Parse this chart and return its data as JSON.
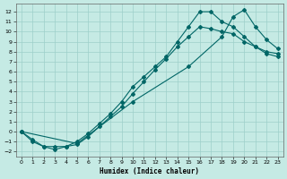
{
  "xlabel": "Humidex (Indice chaleur)",
  "xlim": [
    -0.5,
    23.5
  ],
  "ylim": [
    -2.5,
    12.8
  ],
  "xticks": [
    0,
    1,
    2,
    3,
    4,
    5,
    6,
    7,
    8,
    9,
    10,
    11,
    12,
    13,
    14,
    15,
    16,
    17,
    18,
    19,
    20,
    21,
    22,
    23
  ],
  "yticks": [
    -2,
    -1,
    0,
    1,
    2,
    3,
    4,
    5,
    6,
    7,
    8,
    9,
    10,
    11,
    12
  ],
  "bg_color": "#c5eae4",
  "line_color": "#006666",
  "grid_color": "#9dcfca",
  "curve1_x": [
    0,
    1,
    2,
    3,
    4,
    5,
    6,
    7,
    8,
    9,
    10,
    11,
    12,
    13,
    14,
    15,
    16,
    17,
    18,
    19,
    20,
    21,
    22,
    23
  ],
  "curve1_y": [
    0,
    -1,
    -1.5,
    -1.8,
    -1.5,
    -1.0,
    -0.2,
    0.8,
    1.8,
    3.0,
    4.5,
    5.5,
    6.5,
    7.5,
    9.0,
    10.5,
    12.0,
    12.0,
    11.0,
    10.5,
    9.5,
    8.5,
    7.8,
    7.5
  ],
  "curve2_x": [
    0,
    1,
    2,
    3,
    4,
    5,
    6,
    7,
    8,
    9,
    10,
    11,
    12,
    13,
    14,
    15,
    16,
    17,
    18,
    19,
    20,
    21,
    22,
    23
  ],
  "curve2_y": [
    0,
    -0.8,
    -1.5,
    -1.5,
    -1.5,
    -1.3,
    -0.5,
    0.5,
    1.5,
    2.5,
    3.8,
    5.0,
    6.2,
    7.3,
    8.5,
    9.5,
    10.5,
    10.3,
    10.0,
    9.8,
    9.0,
    8.5,
    8.0,
    7.8
  ],
  "curve3_x": [
    0,
    5,
    10,
    15,
    18,
    19,
    20,
    21,
    22,
    23
  ],
  "curve3_y": [
    0,
    -1.2,
    3.0,
    6.5,
    9.5,
    11.5,
    12.2,
    10.5,
    9.2,
    8.3
  ]
}
